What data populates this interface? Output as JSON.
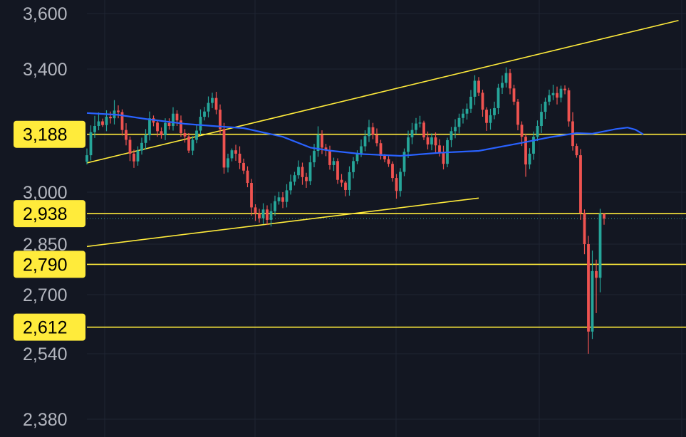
{
  "chart_data": {
    "type": "candlestick",
    "title": "",
    "xlabel": "",
    "ylabel": "",
    "ylim": [
      2380,
      3600
    ],
    "y_ticks": [
      "3,600",
      "3,400",
      "3,000",
      "2,850",
      "2,700",
      "2,540",
      "2,380"
    ],
    "y_tick_values": [
      3600,
      3400,
      3000,
      2850,
      2700,
      2540,
      2380
    ],
    "grid": true,
    "colors": {
      "background": "#131722",
      "up": "#26a69a",
      "down": "#ef5350",
      "moving_average": "#2962ff",
      "levels": "#ffeb3b",
      "label_bg": "#ffeb3b",
      "tick_text": "#b2b5be",
      "grid": "#1f2433"
    },
    "horizontal_levels": [
      {
        "label": "3,188",
        "value": 3188
      },
      {
        "label": "2,938",
        "value": 2938
      },
      {
        "label": "2,790",
        "value": 2790
      },
      {
        "label": "2,612",
        "value": 2612
      }
    ],
    "current_price": 2924,
    "trendlines": [
      {
        "name": "upper channel",
        "from": [
          0,
          3095
        ],
        "to": [
          151,
          3575
        ]
      },
      {
        "name": "lower channel",
        "from": [
          0,
          2843
        ],
        "to": [
          100,
          2983
        ]
      }
    ],
    "moving_average": {
      "x": [
        0,
        8,
        15,
        25,
        33,
        40,
        50,
        57,
        62,
        70,
        80,
        90,
        100,
        110,
        118,
        125,
        129,
        135,
        138,
        140,
        142
      ],
      "y": [
        3257,
        3251,
        3238,
        3222,
        3214,
        3208,
        3180,
        3145,
        3135,
        3124,
        3118,
        3128,
        3134,
        3158,
        3178,
        3192,
        3190,
        3205,
        3210,
        3203,
        3188
      ]
    },
    "candles": {
      "close": [
        3120,
        3195,
        3215,
        3230,
        3218,
        3245,
        3240,
        3265,
        3260,
        3202,
        3170,
        3125,
        3100,
        3135,
        3160,
        3185,
        3240,
        3226,
        3198,
        3185,
        3225,
        3215,
        3255,
        3233,
        3192,
        3181,
        3135,
        3170,
        3200,
        3245,
        3262,
        3290,
        3306,
        3268,
        3205,
        3080,
        3110,
        3136,
        3125,
        3095,
        3070,
        3030,
        2956,
        2938,
        2925,
        2950,
        2920,
        2945,
        2974,
        2985,
        2972,
        3006,
        3034,
        3055,
        3082,
        3049,
        3036,
        3097,
        3134,
        3187,
        3145,
        3136,
        3088,
        3101,
        3040,
        3031,
        3007,
        3065,
        3101,
        3126,
        3149,
        3182,
        3211,
        3186,
        3159,
        3118,
        3107,
        3092,
        3046,
        3004,
        3066,
        3131,
        3178,
        3202,
        3223,
        3226,
        3178,
        3155,
        3178,
        3152,
        3129,
        3092,
        3169,
        3198,
        3212,
        3241,
        3255,
        3271,
        3310,
        3362,
        3323,
        3268,
        3225,
        3250,
        3273,
        3339,
        3355,
        3387,
        3337,
        3294,
        3219,
        3180,
        3090,
        3125,
        3180,
        3215,
        3261,
        3294,
        3315,
        3322,
        3307,
        3336,
        3331,
        3230,
        3150,
        3120,
        2940,
        2850,
        2600,
        2770,
        2750,
        2938,
        2924
      ],
      "open": [
        3099,
        3120,
        3195,
        3215,
        3230,
        3218,
        3245,
        3240,
        3265,
        3260,
        3202,
        3170,
        3125,
        3100,
        3135,
        3160,
        3185,
        3240,
        3226,
        3198,
        3185,
        3225,
        3215,
        3255,
        3233,
        3192,
        3181,
        3135,
        3170,
        3200,
        3245,
        3262,
        3290,
        3306,
        3268,
        3205,
        3080,
        3110,
        3136,
        3125,
        3095,
        3070,
        3030,
        2956,
        2938,
        2925,
        2950,
        2920,
        2945,
        2974,
        2985,
        2972,
        3006,
        3034,
        3055,
        3082,
        3049,
        3036,
        3097,
        3134,
        3187,
        3145,
        3136,
        3088,
        3101,
        3040,
        3031,
        3007,
        3065,
        3101,
        3126,
        3149,
        3182,
        3211,
        3186,
        3159,
        3118,
        3107,
        3092,
        3046,
        3004,
        3066,
        3131,
        3178,
        3202,
        3223,
        3226,
        3178,
        3155,
        3178,
        3152,
        3129,
        3092,
        3169,
        3198,
        3212,
        3241,
        3255,
        3271,
        3310,
        3362,
        3323,
        3268,
        3225,
        3250,
        3273,
        3339,
        3355,
        3387,
        3337,
        3294,
        3219,
        3180,
        3090,
        3125,
        3180,
        3215,
        3261,
        3294,
        3315,
        3322,
        3307,
        3336,
        3331,
        3230,
        3150,
        3120,
        2940,
        2850,
        2600,
        2770,
        2750,
        2938
      ],
      "high": [
        3142,
        3217,
        3248,
        3259,
        3239,
        3266,
        3262,
        3299,
        3282,
        3269,
        3224,
        3181,
        3138,
        3149,
        3177,
        3205,
        3262,
        3249,
        3231,
        3210,
        3240,
        3240,
        3276,
        3266,
        3249,
        3205,
        3192,
        3182,
        3219,
        3269,
        3277,
        3311,
        3323,
        3326,
        3285,
        3225,
        3125,
        3142,
        3154,
        3149,
        3109,
        3084,
        3043,
        2965,
        2952,
        2968,
        2962,
        2968,
        2990,
        3001,
        3000,
        3026,
        3057,
        3066,
        3103,
        3096,
        3063,
        3119,
        3157,
        3214,
        3201,
        3157,
        3151,
        3112,
        3110,
        3059,
        3037,
        3084,
        3114,
        3136,
        3171,
        3201,
        3235,
        3225,
        3207,
        3170,
        3124,
        3117,
        3100,
        3059,
        3078,
        3142,
        3200,
        3225,
        3241,
        3248,
        3232,
        3197,
        3191,
        3194,
        3172,
        3151,
        3177,
        3212,
        3237,
        3255,
        3271,
        3288,
        3332,
        3380,
        3374,
        3333,
        3276,
        3271,
        3294,
        3352,
        3379,
        3406,
        3400,
        3349,
        3303,
        3230,
        3190,
        3143,
        3197,
        3233,
        3287,
        3307,
        3333,
        3349,
        3343,
        3346,
        3347,
        3339,
        3260,
        3158,
        3140,
        2950,
        2874,
        2831,
        2804,
        2952,
        2936
      ],
      "low": [
        3090,
        3103,
        3176,
        3201,
        3212,
        3198,
        3223,
        3220,
        3240,
        3184,
        3152,
        3101,
        3079,
        3086,
        3122,
        3138,
        3168,
        3214,
        3180,
        3174,
        3169,
        3203,
        3200,
        3215,
        3180,
        3161,
        3127,
        3120,
        3159,
        3186,
        3233,
        3243,
        3273,
        3253,
        3190,
        3060,
        3064,
        3100,
        3102,
        3075,
        3059,
        3016,
        2932,
        2917,
        2912,
        2908,
        2905,
        2901,
        2932,
        2964,
        2954,
        2956,
        2993,
        3022,
        3044,
        3024,
        3014,
        3023,
        3081,
        3115,
        3124,
        3117,
        3073,
        3069,
        3027,
        3017,
        2988,
        2990,
        3045,
        3091,
        3114,
        3133,
        3163,
        3172,
        3149,
        3106,
        3097,
        3082,
        3034,
        2981,
        2987,
        3052,
        3111,
        3156,
        3189,
        3210,
        3169,
        3139,
        3136,
        3128,
        3116,
        3074,
        3081,
        3146,
        3175,
        3191,
        3223,
        3236,
        3257,
        3283,
        3312,
        3245,
        3199,
        3203,
        3237,
        3254,
        3319,
        3340,
        3318,
        3283,
        3201,
        3150,
        3050,
        3075,
        3105,
        3166,
        3192,
        3238,
        3282,
        3299,
        3285,
        3292,
        3318,
        3213,
        3135,
        3112,
        2920,
        2820,
        2540,
        2580,
        2650,
        2707,
        2906
      ]
    }
  }
}
